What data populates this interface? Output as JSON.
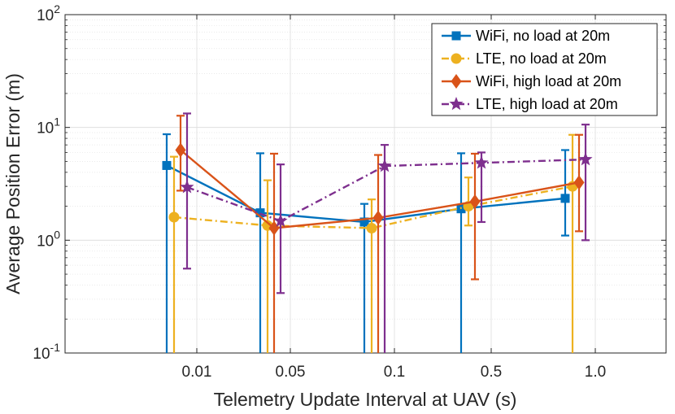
{
  "chart_data": {
    "type": "line",
    "scale_y": "log",
    "categories": [
      "0.01",
      "0.05",
      "0.1",
      "0.5",
      "1.0"
    ],
    "xlabel": "Telemetry Update Interval at UAV (s)",
    "ylabel": "Average Position Error (m)",
    "ylim": [
      0.1,
      100
    ],
    "y_ticks": [
      {
        "value": 0.1,
        "base": "10",
        "exp": "-1"
      },
      {
        "value": 1,
        "base": "10",
        "exp": "0"
      },
      {
        "value": 10,
        "base": "10",
        "exp": "1"
      },
      {
        "value": 100,
        "base": "10",
        "exp": "2"
      }
    ],
    "grid": true,
    "legend_position": "top-right",
    "series": [
      {
        "name": "WiFi, no load at 20m",
        "color": "#0072BD",
        "line_style": "solid",
        "marker": "square",
        "values": [
          4.6,
          1.75,
          1.45,
          1.9,
          2.35
        ],
        "err_low": [
          0.1,
          0.1,
          0.1,
          0.1,
          1.1
        ],
        "err_high": [
          8.7,
          5.9,
          2.1,
          5.9,
          6.3
        ]
      },
      {
        "name": "LTE, no load at 20m",
        "color": "#EDB120",
        "line_style": "dashdot",
        "marker": "circle",
        "values": [
          1.6,
          1.35,
          1.28,
          2.0,
          3.0
        ],
        "err_low": [
          0.1,
          0.1,
          0.1,
          1.35,
          0.1
        ],
        "err_high": [
          5.5,
          3.4,
          2.3,
          3.6,
          8.6
        ]
      },
      {
        "name": "WiFi, high load at 20m",
        "color": "#D95319",
        "line_style": "solid",
        "marker": "diamond",
        "values": [
          6.3,
          1.28,
          1.58,
          2.2,
          3.25
        ],
        "err_low": [
          2.75,
          0.1,
          0.1,
          0.45,
          1.2
        ],
        "err_high": [
          12.7,
          5.85,
          5.7,
          5.85,
          8.6
        ]
      },
      {
        "name": "LTE, high load at 20m",
        "color": "#7E2F8E",
        "line_style": "dashdot",
        "marker": "star",
        "values": [
          2.95,
          1.48,
          4.55,
          4.85,
          5.2
        ],
        "err_low": [
          0.56,
          0.34,
          0.1,
          1.45,
          1.0
        ],
        "err_high": [
          13.3,
          4.7,
          7.0,
          6.0,
          10.6
        ]
      }
    ]
  }
}
